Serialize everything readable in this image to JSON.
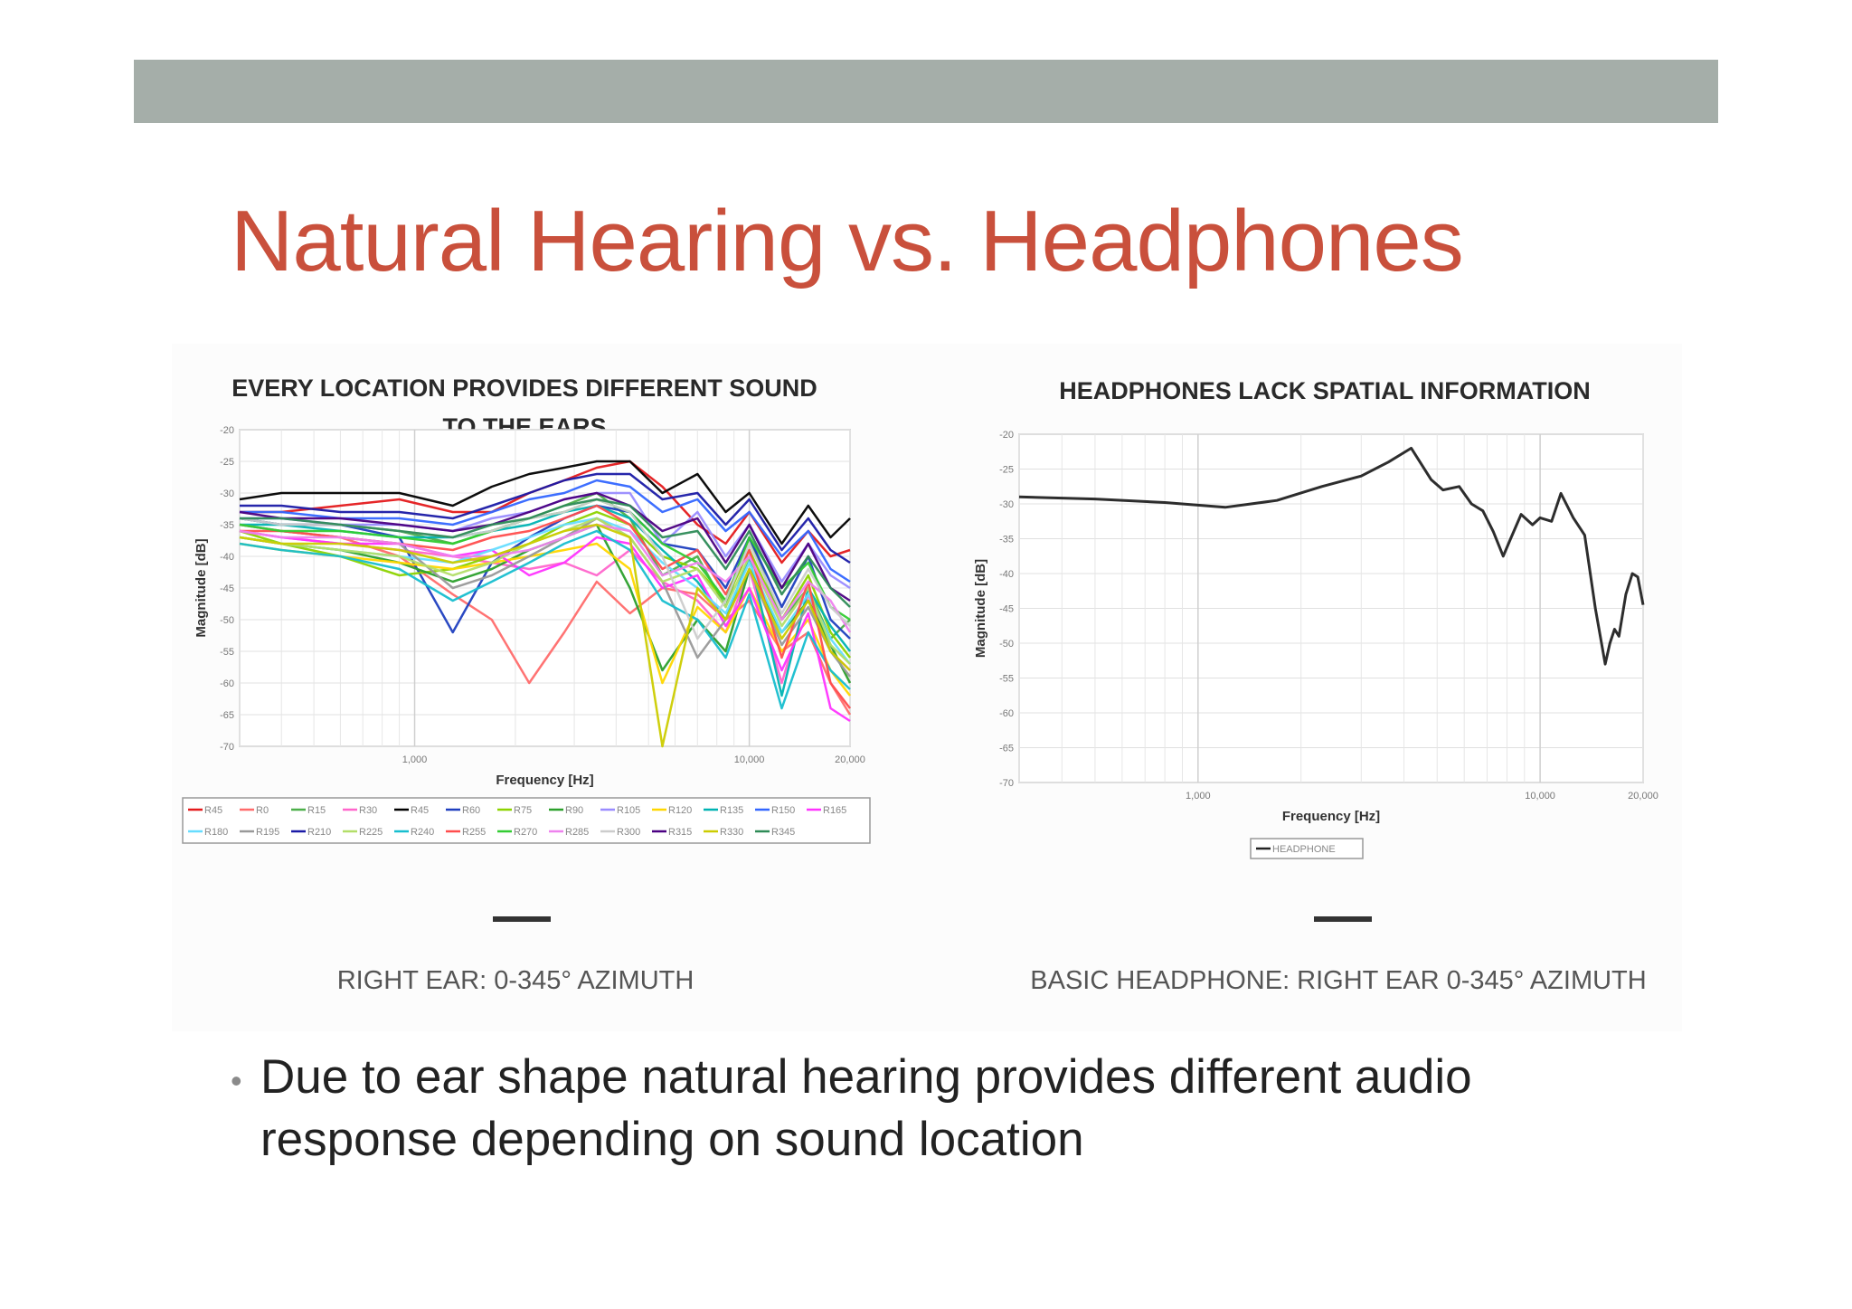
{
  "slide": {
    "title": "Natural Hearing vs. Headphones",
    "bullet": "Due to ear shape natural hearing provides different audio response depending on sound location",
    "colors": {
      "title": "#c9503c",
      "top_bar": "#a5aea9"
    }
  },
  "captions": {
    "left": "RIGHT EAR: 0-345° AZIMUTH",
    "right": "BASIC HEADPHONE: RIGHT EAR 0-345° AZIMUTH"
  },
  "chart_data": [
    {
      "type": "line",
      "title_lines": [
        "EVERY LOCATION PROVIDES DIFFERENT SOUND",
        "TO THE EARS"
      ],
      "xlabel": "Frequency [Hz]",
      "ylabel": "Magnitude [dB]",
      "x_scale": "log",
      "xlim": [
        300,
        20000
      ],
      "ylim": [
        -70,
        -20
      ],
      "x_ticks": [
        {
          "value": 1000,
          "label": "1,000"
        },
        {
          "value": 10000,
          "label": "10,000"
        },
        {
          "value": 20000,
          "label": "20,000"
        }
      ],
      "y_ticks": [
        -20,
        -25,
        -30,
        -35,
        -40,
        -45,
        -50,
        -55,
        -60,
        -65,
        -70
      ],
      "grid": true,
      "legend_position": "bottom",
      "x": [
        300,
        400,
        600,
        900,
        1300,
        1700,
        2200,
        2800,
        3500,
        4400,
        5500,
        7000,
        8500,
        10000,
        12500,
        15000,
        17500,
        20000
      ],
      "series": [
        {
          "name": "R45",
          "color": "#e41a1c",
          "values": [
            -33,
            -33,
            -32,
            -31,
            -33,
            -33,
            -30,
            -28,
            -26,
            -25,
            -29,
            -35,
            -38,
            -33,
            -41,
            -36,
            -40,
            -39
          ]
        },
        {
          "name": "R0",
          "color": "#ff6b6b",
          "values": [
            -35,
            -36,
            -37,
            -40,
            -46,
            -50,
            -60,
            -52,
            -44,
            -49,
            -45,
            -46,
            -50,
            -47,
            -55,
            -52,
            -60,
            -65
          ]
        },
        {
          "name": "R15",
          "color": "#4daf4a",
          "values": [
            -34,
            -35,
            -35,
            -36,
            -38,
            -36,
            -34,
            -32,
            -30,
            -34,
            -43,
            -40,
            -48,
            -37,
            -50,
            -45,
            -53,
            -50
          ]
        },
        {
          "name": "R30",
          "color": "#ff66cc",
          "values": [
            -36,
            -37,
            -38,
            -39,
            -40,
            -41,
            -42,
            -41,
            -43,
            -39,
            -44,
            -47,
            -52,
            -42,
            -60,
            -46,
            -55,
            -58
          ]
        },
        {
          "name": "R45",
          "color": "#000000",
          "values": [
            -31,
            -30,
            -30,
            -30,
            -32,
            -29,
            -27,
            -26,
            -25,
            -25,
            -30,
            -27,
            -33,
            -30,
            -38,
            -32,
            -37,
            -34
          ]
        },
        {
          "name": "R60",
          "color": "#1f3fbf",
          "values": [
            -34,
            -35,
            -35,
            -37,
            -52,
            -41,
            -37,
            -34,
            -32,
            -33,
            -38,
            -39,
            -45,
            -37,
            -48,
            -40,
            -50,
            -53
          ]
        },
        {
          "name": "R75",
          "color": "#8dd300",
          "values": [
            -36,
            -38,
            -40,
            -43,
            -42,
            -40,
            -38,
            -35,
            -33,
            -35,
            -40,
            -42,
            -47,
            -39,
            -50,
            -43,
            -52,
            -56
          ]
        },
        {
          "name": "R90",
          "color": "#2ca02c",
          "values": [
            -37,
            -38,
            -39,
            -41,
            -44,
            -42,
            -39,
            -37,
            -35,
            -45,
            -58,
            -50,
            -55,
            -42,
            -52,
            -47,
            -54,
            -60
          ]
        },
        {
          "name": "R105",
          "color": "#9a8cff",
          "values": [
            -34,
            -34,
            -35,
            -35,
            -36,
            -34,
            -33,
            -31,
            -30,
            -30,
            -38,
            -33,
            -40,
            -35,
            -44,
            -38,
            -43,
            -45
          ]
        },
        {
          "name": "R120",
          "color": "#ffd700",
          "values": [
            -38,
            -39,
            -40,
            -41,
            -42,
            -41,
            -40,
            -39,
            -38,
            -42,
            -60,
            -48,
            -52,
            -45,
            -55,
            -50,
            -58,
            -62
          ]
        },
        {
          "name": "R135",
          "color": "#00b3b3",
          "values": [
            -35,
            -35,
            -36,
            -37,
            -37,
            -36,
            -35,
            -33,
            -32,
            -34,
            -39,
            -44,
            -50,
            -40,
            -62,
            -45,
            -51,
            -55
          ]
        },
        {
          "name": "R150",
          "color": "#3366ff",
          "values": [
            -33,
            -33,
            -34,
            -34,
            -35,
            -33,
            -31,
            -30,
            -28,
            -29,
            -33,
            -31,
            -36,
            -33,
            -40,
            -36,
            -42,
            -44
          ]
        },
        {
          "name": "R165",
          "color": "#ff33ff",
          "values": [
            -36,
            -37,
            -38,
            -38,
            -40,
            -39,
            -43,
            -41,
            -37,
            -38,
            -45,
            -43,
            -51,
            -45,
            -58,
            -49,
            -64,
            -66
          ]
        },
        {
          "name": "R180",
          "color": "#66ddff",
          "values": [
            -37,
            -38,
            -39,
            -40,
            -41,
            -39,
            -37,
            -35,
            -34,
            -36,
            -41,
            -45,
            -49,
            -41,
            -52,
            -46,
            -53,
            -57
          ]
        },
        {
          "name": "R195",
          "color": "#999999",
          "values": [
            -35,
            -36,
            -37,
            -38,
            -45,
            -43,
            -40,
            -37,
            -34,
            -37,
            -44,
            -56,
            -50,
            -42,
            -54,
            -48,
            -55,
            -59
          ]
        },
        {
          "name": "R210",
          "color": "#1a1aa6",
          "values": [
            -32,
            -32,
            -33,
            -33,
            -34,
            -32,
            -30,
            -28,
            -27,
            -27,
            -31,
            -30,
            -35,
            -31,
            -39,
            -34,
            -39,
            -41
          ]
        },
        {
          "name": "R225",
          "color": "#b3de69",
          "values": [
            -37,
            -38,
            -39,
            -40,
            -43,
            -41,
            -38,
            -36,
            -34,
            -37,
            -44,
            -42,
            -48,
            -40,
            -51,
            -45,
            -54,
            -57
          ]
        },
        {
          "name": "R240",
          "color": "#17becf",
          "values": [
            -38,
            -39,
            -40,
            -42,
            -47,
            -44,
            -41,
            -38,
            -36,
            -39,
            -47,
            -50,
            -56,
            -46,
            -64,
            -52,
            -58,
            -61
          ]
        },
        {
          "name": "R255",
          "color": "#ff4d4d",
          "values": [
            -36,
            -36,
            -37,
            -38,
            -39,
            -37,
            -36,
            -34,
            -32,
            -35,
            -42,
            -39,
            -46,
            -39,
            -56,
            -44,
            -60,
            -64
          ]
        },
        {
          "name": "R270",
          "color": "#33cc33",
          "values": [
            -35,
            -36,
            -36,
            -37,
            -38,
            -36,
            -34,
            -33,
            -31,
            -33,
            -38,
            -41,
            -47,
            -37,
            -45,
            -41,
            -48,
            -50
          ]
        },
        {
          "name": "R285",
          "color": "#ee82ee",
          "values": [
            -36,
            -37,
            -37,
            -38,
            -40,
            -40,
            -39,
            -37,
            -35,
            -36,
            -43,
            -41,
            -44,
            -40,
            -50,
            -44,
            -47,
            -52
          ]
        },
        {
          "name": "R300",
          "color": "#cccccc",
          "values": [
            -34,
            -35,
            -35,
            -36,
            -37,
            -36,
            -34,
            -33,
            -31,
            -33,
            -40,
            -53,
            -47,
            -38,
            -49,
            -42,
            -48,
            -51
          ]
        },
        {
          "name": "R315",
          "color": "#4b0082",
          "values": [
            -33,
            -34,
            -34,
            -35,
            -36,
            -35,
            -33,
            -31,
            -30,
            -32,
            -36,
            -34,
            -41,
            -35,
            -45,
            -38,
            -45,
            -47
          ]
        },
        {
          "name": "R330",
          "color": "#cccc00",
          "values": [
            -37,
            -38,
            -38,
            -39,
            -41,
            -40,
            -38,
            -36,
            -35,
            -37,
            -70,
            -45,
            -50,
            -42,
            -53,
            -47,
            -55,
            -58
          ]
        },
        {
          "name": "R345",
          "color": "#2e8b57",
          "values": [
            -34,
            -34,
            -35,
            -36,
            -37,
            -35,
            -34,
            -32,
            -31,
            -32,
            -37,
            -36,
            -42,
            -36,
            -46,
            -40,
            -45,
            -48
          ]
        }
      ]
    },
    {
      "type": "line",
      "title_lines": [
        "HEADPHONES LACK SPATIAL INFORMATION"
      ],
      "xlabel": "Frequency [Hz]",
      "ylabel": "Magnitude [dB]",
      "x_scale": "log",
      "xlim": [
        300,
        20000
      ],
      "ylim": [
        -70,
        -20
      ],
      "x_ticks": [
        {
          "value": 1000,
          "label": "1,000"
        },
        {
          "value": 10000,
          "label": "10,000"
        },
        {
          "value": 20000,
          "label": "20,000"
        }
      ],
      "y_ticks": [
        -20,
        -25,
        -30,
        -35,
        -40,
        -45,
        -50,
        -55,
        -60,
        -65,
        -70
      ],
      "grid": true,
      "legend_position": "bottom",
      "x": [
        300,
        500,
        800,
        1200,
        1700,
        2300,
        3000,
        3600,
        4200,
        4800,
        5200,
        5800,
        6300,
        6800,
        7300,
        7800,
        8200,
        8800,
        9500,
        10000,
        10800,
        11500,
        12500,
        13500,
        14500,
        15500,
        16000,
        16500,
        17000,
        17800,
        18600,
        19300,
        20000
      ],
      "series": [
        {
          "name": "HEADPHONE",
          "color": "#222222",
          "values": [
            -29,
            -29.3,
            -29.8,
            -30.5,
            -29.5,
            -27.5,
            -26,
            -24,
            -22,
            -26.5,
            -28,
            -27.5,
            -30,
            -31,
            -34,
            -37.5,
            -35,
            -31.5,
            -33,
            -32,
            -32.5,
            -28.5,
            -32,
            -34.5,
            -45,
            -53,
            -50,
            -48,
            -49,
            -43,
            -40,
            -40.5,
            -44.5
          ]
        }
      ]
    }
  ]
}
